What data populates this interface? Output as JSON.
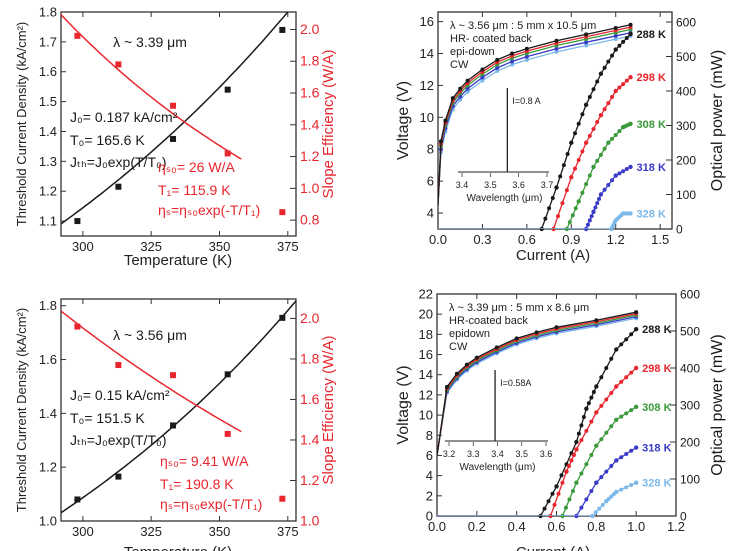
{
  "colors": {
    "black": "#1a1a1a",
    "red": "#e8262e",
    "green": "#3c9a3c",
    "blue": "#3a3ac8",
    "lightblue": "#7cb8ea"
  },
  "chart_data": [
    {
      "type": "scatter",
      "xlabel": "Temperature (K)",
      "ylabel": "Threshold Current Density (kA/cm²)",
      "ylabel_right": "Slope Efficiency (W/A)",
      "xlim": [
        292,
        378
      ],
      "ylim": [
        1.05,
        1.8
      ],
      "ylim_right": [
        0.7,
        2.11
      ],
      "xticks": [
        300,
        325,
        350,
        375
      ],
      "yticks": [
        "1.1",
        "1.2",
        "1.3",
        "1.4",
        "1.5",
        "1.6",
        "1.7",
        "1.8"
      ],
      "yticks_right": [
        "0.8",
        "1.0",
        "1.2",
        "1.4",
        "1.6",
        "1.8",
        "2.0"
      ],
      "series": [
        {
          "axis": "left",
          "color": "#1a1a1a",
          "x": [
            298,
            313,
            333,
            353,
            373
          ],
          "y": [
            1.1,
            1.215,
            1.375,
            1.54,
            1.74
          ],
          "fit": {
            "a": 0.187,
            "b": 165.6,
            "sign": 1,
            "range": [
              292,
              378
            ]
          }
        },
        {
          "axis": "right",
          "color": "#e8262e",
          "x": [
            298,
            313,
            333,
            353,
            373
          ],
          "y": [
            1.96,
            1.78,
            1.52,
            1.22,
            0.85
          ],
          "fit": {
            "a": 26,
            "b": 115.9,
            "sign": -1,
            "range": [
              292,
              358
            ]
          }
        }
      ],
      "annotations": [
        {
          "text": "λ ~ 3.39 μm",
          "color": "#1a1a1a"
        },
        {
          "text": "J₀= 0.187 kA/cm²",
          "color": "#1a1a1a"
        },
        {
          "text": "T₀= 165.6 K",
          "color": "#1a1a1a"
        },
        {
          "text": "Jₜₕ=J₀exp(T/T₀)",
          "color": "#1a1a1a"
        },
        {
          "text": "ηₛ₀= 26 W/A",
          "color": "#e8262e"
        },
        {
          "text": "T₁= 115.9 K",
          "color": "#e8262e"
        },
        {
          "text": "ηₛ=ηₛ₀exp(-T/T₁)",
          "color": "#e8262e"
        }
      ]
    },
    {
      "type": "line",
      "xlabel": "Current (A)",
      "ylabel": "Voltage (V)",
      "ylabel_right": "Optical power (mW)",
      "xlim": [
        0,
        1.58
      ],
      "ylim": [
        3,
        16.6
      ],
      "ylim_right": [
        0,
        629
      ],
      "xticks": [
        "0.0",
        "0.3",
        "0.6",
        "0.9",
        "1.2",
        "1.5"
      ],
      "yticks": [
        "4",
        "6",
        "8",
        "10",
        "12",
        "14",
        "16"
      ],
      "yticks_right": [
        "0",
        "100",
        "200",
        "300",
        "400",
        "500",
        "600"
      ],
      "voltage": {
        "x": [
          0,
          0.02,
          0.05,
          0.1,
          0.15,
          0.2,
          0.3,
          0.4,
          0.5,
          0.6,
          0.8,
          1.0,
          1.2,
          1.3
        ],
        "y": [
          4.5,
          8.5,
          9.8,
          11.2,
          11.8,
          12.3,
          13.0,
          13.6,
          14.0,
          14.3,
          14.8,
          15.2,
          15.6,
          15.8
        ],
        "offsets": [
          0,
          -0.15,
          -0.3,
          -0.5,
          -0.7
        ]
      },
      "power": [
        {
          "name": "288 K",
          "color": "#1a1a1a",
          "x": [
            0,
            0.7,
            0.8,
            0.9,
            1.0,
            1.1,
            1.2,
            1.3
          ],
          "y": [
            0,
            0,
            120,
            250,
            360,
            450,
            520,
            565
          ]
        },
        {
          "name": "298 K",
          "color": "#e8262e",
          "x": [
            0,
            0.78,
            0.9,
            1.0,
            1.1,
            1.2,
            1.3
          ],
          "y": [
            0,
            0,
            150,
            250,
            330,
            400,
            440
          ]
        },
        {
          "name": "308 K",
          "color": "#3c9a3c",
          "x": [
            0,
            0.87,
            0.95,
            1.05,
            1.15,
            1.25,
            1.3
          ],
          "y": [
            0,
            0,
            80,
            180,
            250,
            295,
            305
          ]
        },
        {
          "name": "318 K",
          "color": "#3a3ac8",
          "x": [
            0,
            1.0,
            1.05,
            1.1,
            1.2,
            1.3
          ],
          "y": [
            0,
            0,
            50,
            100,
            155,
            180
          ]
        },
        {
          "name": "328 K",
          "color": "#7cb8ea",
          "x": [
            0,
            1.17,
            1.2,
            1.25,
            1.3
          ],
          "y": [
            0,
            0,
            25,
            45,
            45
          ]
        }
      ],
      "legend_text": [
        "λ ~ 3.56 μm : 5 mm x 10.5 μm",
        "HR- coated back",
        "epi-down",
        "CW"
      ],
      "inset": {
        "xlabel": "Wavelength (μm)",
        "xticks": [
          "3.4",
          "3.5",
          "3.6",
          "3.7"
        ],
        "xlim": [
          3.4,
          3.7
        ],
        "peak": 3.56,
        "label": "I=0.8 A"
      }
    },
    {
      "type": "scatter",
      "xlabel": "Temperature (K)",
      "ylabel": "Threshold Current Density (kA/cm²)",
      "ylabel_right": "Slope Efficiency (W/A)",
      "xlim": [
        292,
        378
      ],
      "ylim": [
        1.0,
        1.825
      ],
      "ylim_right": [
        1.0,
        2.096
      ],
      "xticks": [
        300,
        325,
        350,
        375
      ],
      "yticks": [
        "1.0",
        "1.2",
        "1.4",
        "1.6",
        "1.8"
      ],
      "yticks_right": [
        "1.0",
        "1.2",
        "1.4",
        "1.6",
        "1.8",
        "2.0"
      ],
      "series": [
        {
          "axis": "left",
          "color": "#1a1a1a",
          "x": [
            298,
            313,
            333,
            353,
            373
          ],
          "y": [
            1.08,
            1.165,
            1.355,
            1.545,
            1.755
          ],
          "fit": {
            "a": 0.15,
            "b": 151.5,
            "sign": 1,
            "range": [
              292,
              378
            ]
          }
        },
        {
          "axis": "right",
          "color": "#e8262e",
          "x": [
            298,
            313,
            333,
            353,
            373
          ],
          "y": [
            1.96,
            1.77,
            1.72,
            1.43,
            1.11
          ],
          "fit": {
            "a": 9.41,
            "b": 190.8,
            "sign": -1,
            "range": [
              292,
              358
            ]
          }
        }
      ],
      "annotations": [
        {
          "text": "λ ~ 3.56 μm",
          "color": "#1a1a1a"
        },
        {
          "text": "J₀= 0.15 kA/cm²",
          "color": "#1a1a1a"
        },
        {
          "text": "T₀= 151.5 K",
          "color": "#1a1a1a"
        },
        {
          "text": "Jₜₕ=J₀exp(T/T₀)",
          "color": "#1a1a1a"
        },
        {
          "text": "ηₛ₀= 9.41 W/A",
          "color": "#e8262e"
        },
        {
          "text": "T₁= 190.8 K",
          "color": "#e8262e"
        },
        {
          "text": "ηₛ=ηₛ₀exp(-T/T₁)",
          "color": "#e8262e"
        }
      ]
    },
    {
      "type": "line",
      "xlabel": "Current (A)",
      "ylabel": "Voltage (V)",
      "ylabel_right": "Optical power (mW)",
      "xlim": [
        0,
        1.2
      ],
      "ylim": [
        0,
        22
      ],
      "ylim_right": [
        0,
        600
      ],
      "xticks": [
        "0.0",
        "0.2",
        "0.4",
        "0.6",
        "0.8",
        "1.0",
        "1.2"
      ],
      "yticks": [
        "0",
        "2",
        "4",
        "6",
        "8",
        "10",
        "12",
        "14",
        "16",
        "18",
        "20",
        "22"
      ],
      "yticks_right": [
        "0",
        "100",
        "200",
        "300",
        "400",
        "500",
        "600"
      ],
      "voltage": {
        "x": [
          0,
          0.05,
          0.1,
          0.15,
          0.2,
          0.3,
          0.4,
          0.5,
          0.6,
          0.8,
          1.0
        ],
        "y": [
          6,
          12.8,
          14.1,
          15,
          15.7,
          16.7,
          17.6,
          18.2,
          18.7,
          19.4,
          20.2
        ],
        "offsets": [
          0,
          -0.15,
          -0.3,
          -0.45,
          -0.6
        ]
      },
      "power": [
        {
          "name": "288 K",
          "color": "#1a1a1a",
          "x": [
            0,
            0.52,
            0.6,
            0.7,
            0.75,
            0.8,
            0.9,
            1.0
          ],
          "y": [
            0,
            0,
            80,
            200,
            290,
            350,
            450,
            505
          ]
        },
        {
          "name": "298 K",
          "color": "#e8262e",
          "x": [
            0,
            0.57,
            0.65,
            0.7,
            0.8,
            0.9,
            1.0
          ],
          "y": [
            0,
            0,
            120,
            180,
            280,
            350,
            400
          ]
        },
        {
          "name": "308 K",
          "color": "#3c9a3c",
          "x": [
            0,
            0.63,
            0.7,
            0.8,
            0.9,
            1.0
          ],
          "y": [
            0,
            0,
            90,
            190,
            260,
            295
          ]
        },
        {
          "name": "318 K",
          "color": "#3a3ac8",
          "x": [
            0,
            0.7,
            0.8,
            0.9,
            1.0
          ],
          "y": [
            0,
            0,
            90,
            150,
            185
          ]
        },
        {
          "name": "328 K",
          "color": "#7cb8ea",
          "x": [
            0,
            0.78,
            0.85,
            0.9,
            1.0
          ],
          "y": [
            0,
            0,
            40,
            65,
            90
          ]
        }
      ],
      "legend_text": [
        "λ ~ 3.39 μm : 5 mm x 8.6 μm",
        "HR-coated back",
        "epidown",
        "CW"
      ],
      "inset": {
        "xlabel": "Wavelength (μm)",
        "xticks": [
          "3.2",
          "3.3",
          "3.4",
          "3.5",
          "3.6"
        ],
        "xlim": [
          3.2,
          3.6
        ],
        "peak": 3.39,
        "label": "I=0.58A"
      }
    }
  ]
}
